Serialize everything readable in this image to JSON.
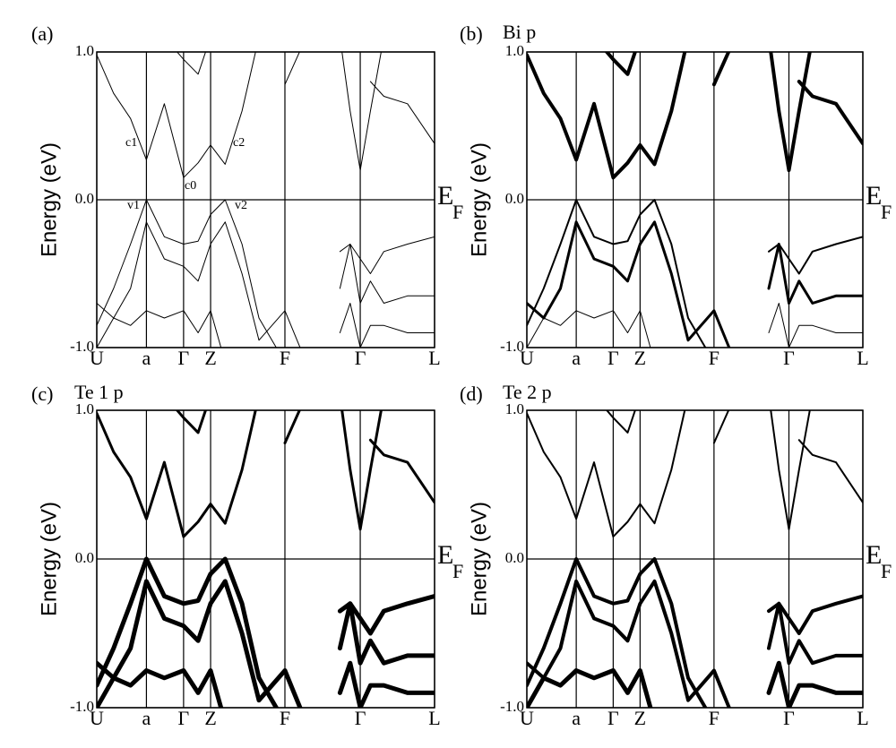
{
  "chart_data": [
    {
      "type": "line",
      "panel_label": "(a)",
      "y_label": "Energy (eV)",
      "fermi_label": {
        "main": "E",
        "sub": "F"
      },
      "annotations": [
        "c1",
        "c0",
        "c2",
        "v1",
        "v2"
      ],
      "xlim": [
        0,
        1
      ],
      "ylim": [
        -1,
        1
      ],
      "grid": true,
      "xticks": [
        {
          "value": 0,
          "label": "U"
        },
        {
          "value": 0.147,
          "label": "a"
        },
        {
          "value": 0.257,
          "label": "Γ"
        },
        {
          "value": 0.337,
          "label": "Z"
        },
        {
          "value": 0.557,
          "label": "F"
        },
        {
          "value": 0.78,
          "label": "Γ"
        },
        {
          "value": 1,
          "label": "L"
        }
      ],
      "yticks": [
        {
          "value": 1,
          "label": "1.0"
        },
        {
          "value": 0,
          "label": "0.0"
        },
        {
          "value": -1,
          "label": "-1.0"
        }
      ],
      "x": [
        0,
        0.05,
        0.1,
        0.147,
        0.2,
        0.257,
        0.3,
        0.337,
        0.38,
        0.43,
        0.48,
        0.557,
        0.62,
        0.68,
        0.72,
        0.75,
        0.78,
        0.81,
        0.85,
        0.92,
        1.0
      ],
      "series": [
        {
          "color": "#000000",
          "linewidth": 1,
          "values": [
            0.98,
            0.72,
            0.55,
            0.27,
            0.65,
            0.15,
            0.25,
            0.37,
            0.24,
            0.6,
            1.1,
            null,
            null,
            null,
            1.1,
            0.6,
            0.2,
            0.6,
            1.1,
            null,
            null
          ]
        },
        {
          "color": "#000000",
          "linewidth": 1,
          "values": [
            null,
            null,
            null,
            null,
            1.1,
            0.95,
            0.85,
            1.1,
            null,
            null,
            null,
            0.78,
            1.1,
            null,
            null,
            null,
            null,
            0.8,
            0.7,
            0.65,
            0.38
          ]
        },
        {
          "color": "#000000",
          "linewidth": 1,
          "values": [
            -0.85,
            -0.6,
            -0.3,
            0.0,
            -0.25,
            -0.3,
            -0.28,
            -0.1,
            0.0,
            -0.3,
            -0.8,
            -1.1,
            null,
            null,
            -0.35,
            -0.3,
            -0.4,
            -0.5,
            -0.35,
            -0.3,
            -0.25
          ]
        },
        {
          "color": "#000000",
          "linewidth": 1,
          "values": [
            -0.7,
            -0.8,
            -0.6,
            -0.15,
            -0.4,
            -0.45,
            -0.55,
            -0.3,
            -0.15,
            -0.5,
            -0.95,
            -0.75,
            -1.1,
            null,
            -0.6,
            -0.3,
            -0.7,
            -0.55,
            -0.7,
            -0.65,
            -0.65
          ]
        },
        {
          "color": "#000000",
          "linewidth": 1,
          "values": [
            -1.0,
            -0.8,
            -0.85,
            -0.75,
            -0.8,
            -0.75,
            -0.9,
            -0.75,
            -1.1,
            null,
            null,
            null,
            null,
            null,
            -0.9,
            -0.7,
            -1.0,
            -0.85,
            -0.85,
            -0.9,
            -0.9
          ]
        }
      ]
    },
    {
      "type": "line",
      "panel_label": "(b)",
      "title": "Bi p",
      "y_label": "Energy (eV)",
      "fermi_label": {
        "main": "E",
        "sub": "F"
      },
      "xlim": [
        0,
        1
      ],
      "ylim": [
        -1,
        1
      ],
      "grid": true,
      "xticks": [
        {
          "value": 0,
          "label": "U"
        },
        {
          "value": 0.147,
          "label": "a"
        },
        {
          "value": 0.257,
          "label": "Γ"
        },
        {
          "value": 0.337,
          "label": "Z"
        },
        {
          "value": 0.557,
          "label": "F"
        },
        {
          "value": 0.78,
          "label": "Γ"
        },
        {
          "value": 1,
          "label": "L"
        }
      ],
      "yticks": [
        {
          "value": 1,
          "label": "1.0"
        },
        {
          "value": 0,
          "label": "0.0"
        },
        {
          "value": -1,
          "label": "-1.0"
        }
      ],
      "x": [
        0,
        0.05,
        0.1,
        0.147,
        0.2,
        0.257,
        0.3,
        0.337,
        0.38,
        0.43,
        0.48,
        0.557,
        0.62,
        0.68,
        0.72,
        0.75,
        0.78,
        0.81,
        0.85,
        0.92,
        1.0
      ],
      "series": [
        {
          "color": "#000000",
          "linewidth": 4,
          "values": [
            0.98,
            0.72,
            0.55,
            0.27,
            0.65,
            0.15,
            0.25,
            0.37,
            0.24,
            0.6,
            1.1,
            null,
            null,
            null,
            1.1,
            0.6,
            0.2,
            0.6,
            1.1,
            null,
            null
          ]
        },
        {
          "color": "#000000",
          "linewidth": 4,
          "values": [
            null,
            null,
            null,
            null,
            1.1,
            0.95,
            0.85,
            1.1,
            null,
            null,
            null,
            0.78,
            1.1,
            null,
            null,
            null,
            null,
            0.8,
            0.7,
            0.65,
            0.38
          ]
        },
        {
          "color": "#000000",
          "linewidth": 2,
          "values": [
            -0.85,
            -0.6,
            -0.3,
            0.0,
            -0.25,
            -0.3,
            -0.28,
            -0.1,
            0.0,
            -0.3,
            -0.8,
            -1.1,
            null,
            null,
            -0.35,
            -0.3,
            -0.4,
            -0.5,
            -0.35,
            -0.3,
            -0.25
          ]
        },
        {
          "color": "#000000",
          "linewidth": 3,
          "values": [
            -0.7,
            -0.8,
            -0.6,
            -0.15,
            -0.4,
            -0.45,
            -0.55,
            -0.3,
            -0.15,
            -0.5,
            -0.95,
            -0.75,
            -1.1,
            null,
            -0.6,
            -0.3,
            -0.7,
            -0.55,
            -0.7,
            -0.65,
            -0.65
          ]
        },
        {
          "color": "#000000",
          "linewidth": 1,
          "values": [
            -1.0,
            -0.8,
            -0.85,
            -0.75,
            -0.8,
            -0.75,
            -0.9,
            -0.75,
            -1.1,
            null,
            null,
            null,
            null,
            null,
            -0.9,
            -0.7,
            -1.0,
            -0.85,
            -0.85,
            -0.9,
            -0.9
          ]
        }
      ]
    },
    {
      "type": "line",
      "panel_label": "(c)",
      "title": "Te 1 p",
      "y_label": "Energy (eV)",
      "fermi_label": {
        "main": "E",
        "sub": "F"
      },
      "xlim": [
        0,
        1
      ],
      "ylim": [
        -1,
        1
      ],
      "grid": true,
      "xticks": [
        {
          "value": 0,
          "label": "U"
        },
        {
          "value": 0.147,
          "label": "a"
        },
        {
          "value": 0.257,
          "label": "Γ"
        },
        {
          "value": 0.337,
          "label": "Z"
        },
        {
          "value": 0.557,
          "label": "F"
        },
        {
          "value": 0.78,
          "label": "Γ"
        },
        {
          "value": 1,
          "label": "L"
        }
      ],
      "yticks": [
        {
          "value": 1,
          "label": "1.0"
        },
        {
          "value": 0,
          "label": "0.0"
        },
        {
          "value": -1,
          "label": "-1.0"
        }
      ],
      "x": [
        0,
        0.05,
        0.1,
        0.147,
        0.2,
        0.257,
        0.3,
        0.337,
        0.38,
        0.43,
        0.48,
        0.557,
        0.62,
        0.68,
        0.72,
        0.75,
        0.78,
        0.81,
        0.85,
        0.92,
        1.0
      ],
      "series": [
        {
          "color": "#000000",
          "linewidth": 3,
          "values": [
            0.98,
            0.72,
            0.55,
            0.27,
            0.65,
            0.15,
            0.25,
            0.37,
            0.24,
            0.6,
            1.1,
            null,
            null,
            null,
            1.1,
            0.6,
            0.2,
            0.6,
            1.1,
            null,
            null
          ]
        },
        {
          "color": "#000000",
          "linewidth": 3,
          "values": [
            null,
            null,
            null,
            null,
            1.1,
            0.95,
            0.85,
            1.1,
            null,
            null,
            null,
            0.78,
            1.1,
            null,
            null,
            null,
            null,
            0.8,
            0.7,
            0.65,
            0.38
          ]
        },
        {
          "color": "#000000",
          "linewidth": 5,
          "values": [
            -0.85,
            -0.6,
            -0.3,
            0.0,
            -0.25,
            -0.3,
            -0.28,
            -0.1,
            0.0,
            -0.3,
            -0.8,
            -1.1,
            null,
            null,
            -0.35,
            -0.3,
            -0.4,
            -0.5,
            -0.35,
            -0.3,
            -0.25
          ]
        },
        {
          "color": "#000000",
          "linewidth": 5,
          "values": [
            -0.7,
            -0.8,
            -0.6,
            -0.15,
            -0.4,
            -0.45,
            -0.55,
            -0.3,
            -0.15,
            -0.5,
            -0.95,
            -0.75,
            -1.1,
            null,
            -0.6,
            -0.3,
            -0.7,
            -0.55,
            -0.7,
            -0.65,
            -0.65
          ]
        },
        {
          "color": "#000000",
          "linewidth": 5,
          "values": [
            -1.0,
            -0.8,
            -0.85,
            -0.75,
            -0.8,
            -0.75,
            -0.9,
            -0.75,
            -1.1,
            null,
            null,
            null,
            null,
            null,
            -0.9,
            -0.7,
            -1.0,
            -0.85,
            -0.85,
            -0.9,
            -0.9
          ]
        }
      ]
    },
    {
      "type": "line",
      "panel_label": "(d)",
      "title": "Te 2 p",
      "y_label": "Energy (eV)",
      "fermi_label": {
        "main": "E",
        "sub": "F"
      },
      "xlim": [
        0,
        1
      ],
      "ylim": [
        -1,
        1
      ],
      "grid": true,
      "xticks": [
        {
          "value": 0,
          "label": "U"
        },
        {
          "value": 0.147,
          "label": "a"
        },
        {
          "value": 0.257,
          "label": "Γ"
        },
        {
          "value": 0.337,
          "label": "Z"
        },
        {
          "value": 0.557,
          "label": "F"
        },
        {
          "value": 0.78,
          "label": "Γ"
        },
        {
          "value": 1,
          "label": "L"
        }
      ],
      "yticks": [
        {
          "value": 1,
          "label": "1.0"
        },
        {
          "value": 0,
          "label": "0.0"
        },
        {
          "value": -1,
          "label": "-1.0"
        }
      ],
      "x": [
        0,
        0.05,
        0.1,
        0.147,
        0.2,
        0.257,
        0.3,
        0.337,
        0.38,
        0.43,
        0.48,
        0.557,
        0.62,
        0.68,
        0.72,
        0.75,
        0.78,
        0.81,
        0.85,
        0.92,
        1.0
      ],
      "series": [
        {
          "color": "#000000",
          "linewidth": 2,
          "values": [
            0.98,
            0.72,
            0.55,
            0.27,
            0.65,
            0.15,
            0.25,
            0.37,
            0.24,
            0.6,
            1.1,
            null,
            null,
            null,
            1.1,
            0.6,
            0.2,
            0.6,
            1.1,
            null,
            null
          ]
        },
        {
          "color": "#000000",
          "linewidth": 2,
          "values": [
            null,
            null,
            null,
            null,
            1.1,
            0.95,
            0.85,
            1.1,
            null,
            null,
            null,
            0.78,
            1.1,
            null,
            null,
            null,
            null,
            0.8,
            0.7,
            0.65,
            0.38
          ]
        },
        {
          "color": "#000000",
          "linewidth": 4,
          "values": [
            -0.85,
            -0.6,
            -0.3,
            0.0,
            -0.25,
            -0.3,
            -0.28,
            -0.1,
            0.0,
            -0.3,
            -0.8,
            -1.1,
            null,
            null,
            -0.35,
            -0.3,
            -0.4,
            -0.5,
            -0.35,
            -0.3,
            -0.25
          ]
        },
        {
          "color": "#000000",
          "linewidth": 4,
          "values": [
            -0.7,
            -0.8,
            -0.6,
            -0.15,
            -0.4,
            -0.45,
            -0.55,
            -0.3,
            -0.15,
            -0.5,
            -0.95,
            -0.75,
            -1.1,
            null,
            -0.6,
            -0.3,
            -0.7,
            -0.55,
            -0.7,
            -0.65,
            -0.65
          ]
        },
        {
          "color": "#000000",
          "linewidth": 5,
          "values": [
            -1.0,
            -0.8,
            -0.85,
            -0.75,
            -0.8,
            -0.75,
            -0.9,
            -0.75,
            -1.1,
            null,
            null,
            null,
            null,
            null,
            -0.9,
            -0.7,
            -1.0,
            -0.85,
            -0.85,
            -0.9,
            -0.9
          ]
        }
      ]
    }
  ]
}
